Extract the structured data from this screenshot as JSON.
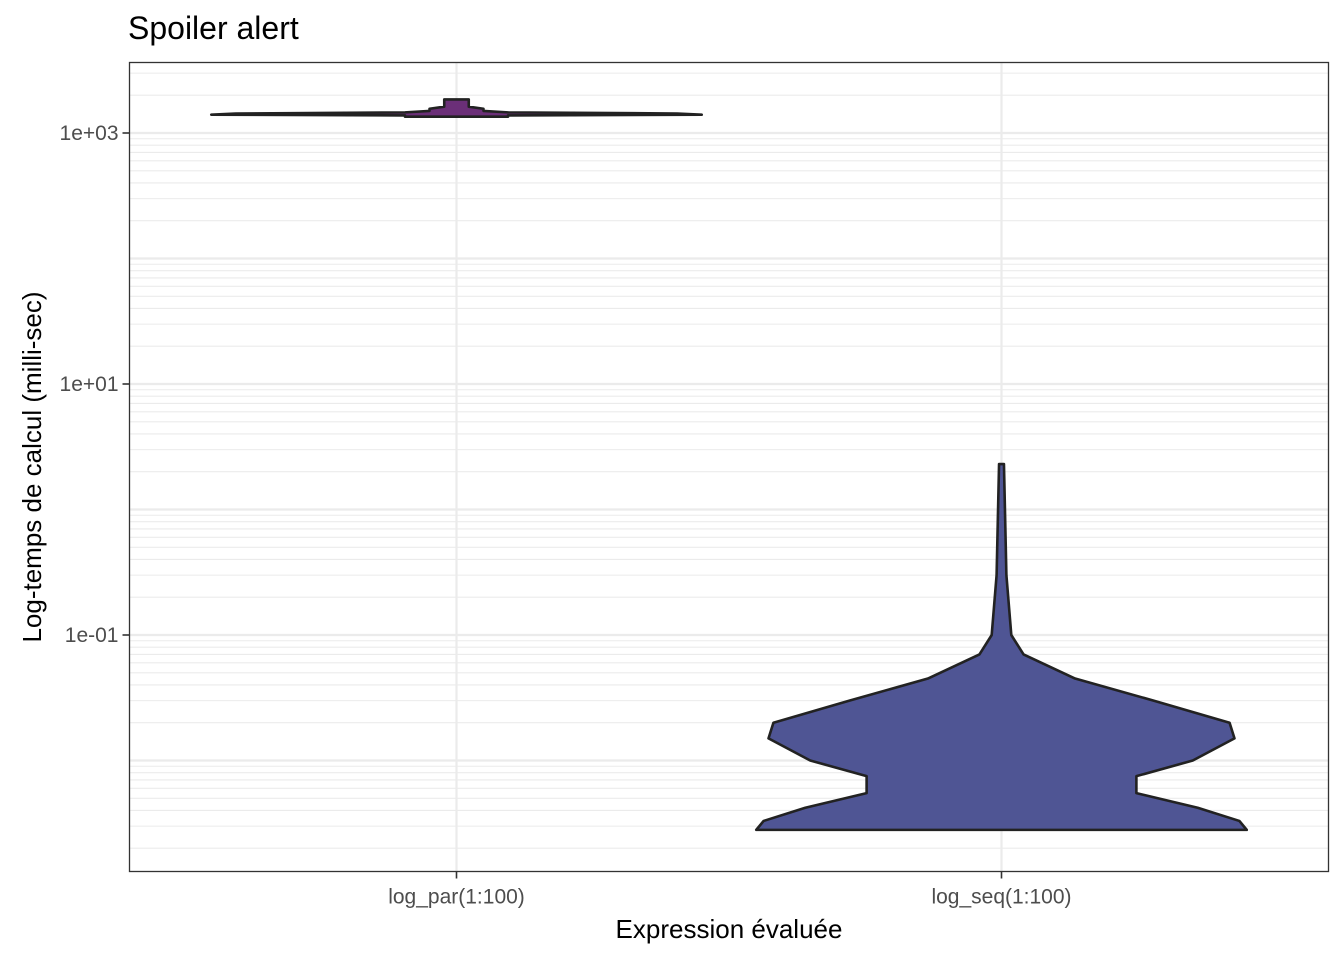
{
  "chart_data": {
    "type": "violin",
    "title": "Spoiler alert",
    "xlabel": "Expression évaluée",
    "ylabel": "Log-temps de calcul (milli-sec)",
    "y_scale": "log10",
    "ylim": [
      0.0025,
      3500
    ],
    "yticks": [
      {
        "value": 0.1,
        "label": "1e-01"
      },
      {
        "value": 10,
        "label": "1e+01"
      },
      {
        "value": 1000,
        "label": "1e+03"
      }
    ],
    "grid": true,
    "theme_colors": {
      "panel_border": "#333333",
      "grid": "#ebebeb",
      "outline": "#222222"
    },
    "categories": [
      "log_par(1:100)",
      "log_seq(1:100)"
    ],
    "series": [
      {
        "category": "log_par(1:100)",
        "fill": "#6b2f78",
        "min": 1350,
        "max": 1850,
        "profile": [
          {
            "y": 1350,
            "w": 0.21
          },
          {
            "y": 1380,
            "w": 0.21
          },
          {
            "y": 1400,
            "w": 1.0
          },
          {
            "y": 1430,
            "w": 0.9
          },
          {
            "y": 1460,
            "w": 0.21
          },
          {
            "y": 1500,
            "w": 0.11
          },
          {
            "y": 1560,
            "w": 0.11
          },
          {
            "y": 1620,
            "w": 0.05
          },
          {
            "y": 1750,
            "w": 0.05
          },
          {
            "y": 1850,
            "w": 0.05
          }
        ]
      },
      {
        "category": "log_seq(1:100)",
        "fill": "#4f5594",
        "min": 0.0028,
        "max": 2.3,
        "profile": [
          {
            "y": 0.0028,
            "w": 1.0
          },
          {
            "y": 0.0033,
            "w": 0.97
          },
          {
            "y": 0.0042,
            "w": 0.8
          },
          {
            "y": 0.0055,
            "w": 0.55
          },
          {
            "y": 0.0075,
            "w": 0.55
          },
          {
            "y": 0.01,
            "w": 0.78
          },
          {
            "y": 0.015,
            "w": 0.95
          },
          {
            "y": 0.02,
            "w": 0.93
          },
          {
            "y": 0.03,
            "w": 0.62
          },
          {
            "y": 0.045,
            "w": 0.3
          },
          {
            "y": 0.07,
            "w": 0.09
          },
          {
            "y": 0.1,
            "w": 0.04
          },
          {
            "y": 0.3,
            "w": 0.02
          },
          {
            "y": 2.3,
            "w": 0.01
          }
        ]
      }
    ]
  }
}
